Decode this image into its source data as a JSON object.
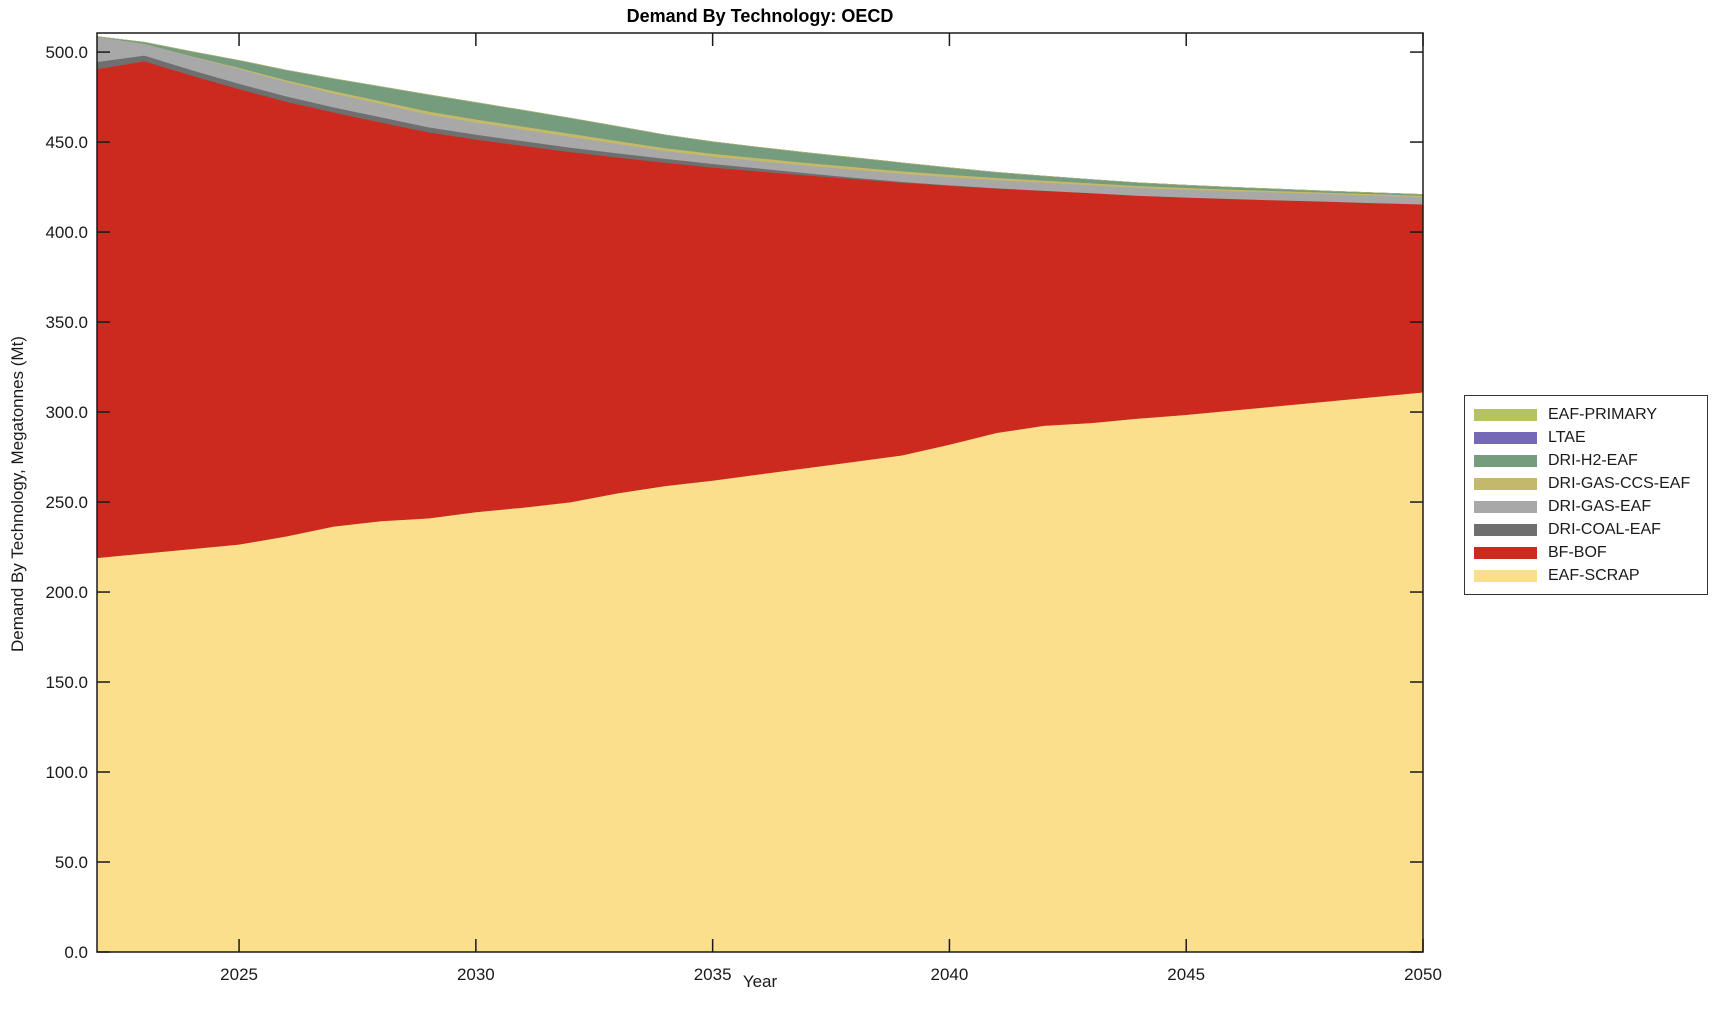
{
  "title": "Demand By Technology: OECD",
  "axes": {
    "x_label": "Year",
    "y_label": "Demand By Technology, Megatonnes (Mt)",
    "x_tick_labels": [
      "2025",
      "2030",
      "2035",
      "2040",
      "2045",
      "2050"
    ],
    "y_tick_labels": [
      "0.0",
      "50.0",
      "100.0",
      "150.0",
      "200.0",
      "250.0",
      "300.0",
      "350.0",
      "400.0",
      "450.0",
      "500.0"
    ]
  },
  "legend": {
    "entries": [
      {
        "label": "EAF-PRIMARY",
        "color": "#b4c261"
      },
      {
        "label": "LTAE",
        "color": "#7668b8"
      },
      {
        "label": "DRI-H2-EAF",
        "color": "#759c7d"
      },
      {
        "label": "DRI-GAS-CCS-EAF",
        "color": "#c4b96a"
      },
      {
        "label": "DRI-GAS-EAF",
        "color": "#a8a8a8"
      },
      {
        "label": "DRI-COAL-EAF",
        "color": "#6f6f6f"
      },
      {
        "label": "BF-BOF",
        "color": "#cd2a1f"
      },
      {
        "label": "EAF-SCRAP",
        "color": "#fbdf8d"
      }
    ]
  },
  "chart_data": {
    "type": "area",
    "stacked": true,
    "title": "Demand By Technology: OECD",
    "xlabel": "Year",
    "ylabel": "Demand By Technology, Megatonnes (Mt)",
    "xlim": [
      2022,
      2050
    ],
    "ylim": [
      0,
      510.6
    ],
    "x_ticks": [
      2025,
      2030,
      2035,
      2040,
      2045,
      2050
    ],
    "y_ticks": [
      0,
      50,
      100,
      150,
      200,
      250,
      300,
      350,
      400,
      450,
      500
    ],
    "grid": false,
    "legend_position": "right-outside",
    "x": [
      2022,
      2023,
      2024,
      2025,
      2026,
      2027,
      2028,
      2029,
      2030,
      2031,
      2032,
      2033,
      2034,
      2035,
      2036,
      2037,
      2038,
      2039,
      2040,
      2041,
      2042,
      2043,
      2044,
      2045,
      2046,
      2047,
      2048,
      2049,
      2050
    ],
    "series": [
      {
        "name": "EAF-SCRAP",
        "color": "#fbdf8d",
        "values": [
          219,
          221.5,
          224,
          226.5,
          231,
          236.5,
          239.5,
          241,
          244.5,
          247,
          250,
          255,
          259,
          262,
          265.5,
          269,
          272.5,
          276,
          282,
          288.5,
          292.5,
          294,
          296.5,
          298.5,
          301,
          303.5,
          306,
          308.5,
          311
        ]
      },
      {
        "name": "BF-BOF",
        "color": "#cd2a1f",
        "values": [
          271.6,
          273.5,
          263,
          253,
          241.5,
          230,
          221.5,
          214.5,
          207,
          201,
          194.5,
          186.5,
          179.6,
          174,
          168.2,
          162.5,
          157,
          151.5,
          143.8,
          135.8,
          130.5,
          127.7,
          123.8,
          120.8,
          117.5,
          114.2,
          111,
          107.7,
          104.5
        ]
      },
      {
        "name": "DRI-COAL-EAF",
        "color": "#6f6f6f",
        "values": [
          4,
          3.2,
          3.1,
          3,
          2.95,
          2.9,
          2.85,
          2.8,
          2.7,
          2.6,
          2.5,
          2.35,
          2.2,
          2,
          1.7,
          1.3,
          0.8,
          0.5,
          0.3,
          0.15,
          0.05,
          0,
          0,
          0,
          0,
          0,
          0,
          0,
          0
        ]
      },
      {
        "name": "DRI-GAS-EAF",
        "color": "#a8a8a8",
        "values": [
          14,
          6.5,
          7.5,
          8.3,
          8,
          7.7,
          7.4,
          7.1,
          6.8,
          6.4,
          6,
          5.2,
          4.3,
          4,
          4.1,
          4.2,
          4.4,
          4.5,
          4.5,
          4.5,
          4.5,
          4.4,
          4.4,
          4.4,
          4.3,
          4.3,
          4.2,
          4.2,
          4.1
        ]
      },
      {
        "name": "DRI-GAS-CCS-EAF",
        "color": "#c4b96a",
        "values": [
          0,
          0,
          0.2,
          0.6,
          1,
          1.3,
          1.5,
          1.7,
          1.7,
          1.7,
          1.7,
          1.65,
          1.6,
          1.6,
          1.55,
          1.5,
          1.45,
          1.4,
          1.35,
          1.25,
          1.2,
          1.1,
          1,
          0.95,
          0.9,
          0.85,
          0.8,
          0.75,
          0.7
        ]
      },
      {
        "name": "DRI-H2-EAF",
        "color": "#759c7d",
        "values": [
          0,
          0.8,
          2.5,
          4,
          5.5,
          6.8,
          8,
          9.2,
          9.3,
          9,
          8.6,
          8,
          7.3,
          6.6,
          6,
          5.6,
          5.2,
          4.6,
          3.8,
          3,
          2.4,
          2,
          1.7,
          1.4,
          1.2,
          1,
          0.8,
          0.7,
          0.6
        ]
      },
      {
        "name": "LTAE",
        "color": "#7668b8",
        "values": [
          0,
          0,
          0,
          0,
          0,
          0,
          0,
          0,
          0,
          0,
          0,
          0,
          0,
          0,
          0,
          0,
          0,
          0,
          0,
          0,
          0,
          0,
          0,
          0,
          0,
          0,
          0,
          0,
          0
        ]
      },
      {
        "name": "EAF-PRIMARY",
        "color": "#b4c261",
        "values": [
          0,
          0,
          0,
          0,
          0,
          0,
          0,
          0,
          0,
          0,
          0,
          0,
          0,
          0,
          0,
          0,
          0,
          0,
          0,
          0,
          0,
          0,
          0,
          0,
          0,
          0,
          0,
          0,
          0
        ]
      }
    ]
  }
}
